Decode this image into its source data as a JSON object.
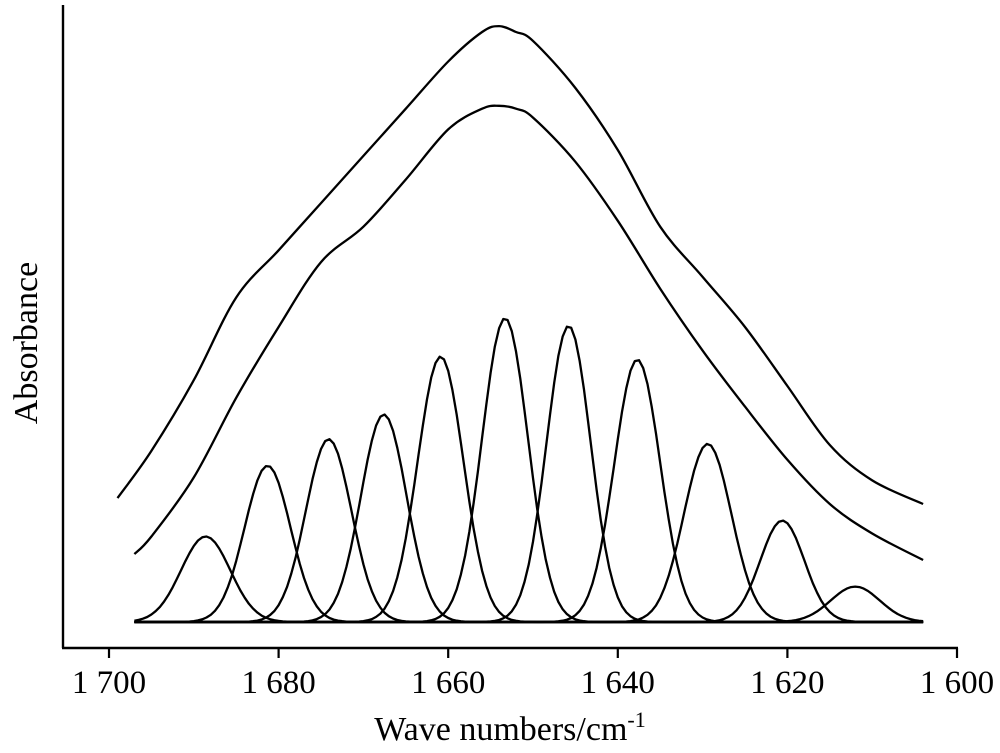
{
  "chart_data": {
    "type": "line",
    "title": "",
    "xlabel": "Wave numbers/cm",
    "xlabel_superscript": "-1",
    "ylabel": "Absorbance",
    "xlim": [
      1700,
      1600
    ],
    "x_reversed": true,
    "ylim": [
      0,
      1.05
    ],
    "y_ticks_shown": false,
    "grid": false,
    "legend": "none",
    "xticks": [
      {
        "value": 1700,
        "label": "1 700"
      },
      {
        "value": 1680,
        "label": "1 680"
      },
      {
        "value": 1660,
        "label": "1 660"
      },
      {
        "value": 1640,
        "label": "1 640"
      },
      {
        "value": 1620,
        "label": "1 620"
      },
      {
        "value": 1600,
        "label": "1 600"
      }
    ],
    "series": [
      {
        "role": "spectrum",
        "x": [
          1699,
          1695,
          1690,
          1685,
          1680,
          1675,
          1670,
          1665,
          1660,
          1656,
          1654,
          1652,
          1650,
          1645,
          1640,
          1635,
          1630,
          1625,
          1620,
          1615,
          1610,
          1604
        ],
        "values": [
          0.21,
          0.29,
          0.41,
          0.55,
          0.63,
          0.71,
          0.79,
          0.87,
          0.95,
          1.0,
          1.01,
          1.0,
          0.985,
          0.905,
          0.8,
          0.67,
          0.585,
          0.5,
          0.4,
          0.3,
          0.24,
          0.2
        ]
      },
      {
        "role": "fitted envelope",
        "x": [
          1697,
          1695,
          1690,
          1685,
          1680,
          1675,
          1670,
          1665,
          1660,
          1656,
          1654,
          1652,
          1650,
          1645,
          1640,
          1635,
          1630,
          1625,
          1620,
          1615,
          1610,
          1604
        ],
        "values": [
          0.115,
          0.145,
          0.245,
          0.38,
          0.5,
          0.61,
          0.67,
          0.75,
          0.835,
          0.87,
          0.875,
          0.87,
          0.855,
          0.78,
          0.68,
          0.565,
          0.46,
          0.365,
          0.275,
          0.2,
          0.15,
          0.105
        ]
      },
      {
        "role": "component",
        "center": 1688.6,
        "height": 0.145,
        "sigma": 2.9
      },
      {
        "role": "component",
        "center": 1681.3,
        "height": 0.265,
        "sigma": 2.7
      },
      {
        "role": "component",
        "center": 1674.1,
        "height": 0.31,
        "sigma": 2.7
      },
      {
        "role": "component",
        "center": 1667.6,
        "height": 0.352,
        "sigma": 2.7
      },
      {
        "role": "component",
        "center": 1660.9,
        "height": 0.45,
        "sigma": 2.7
      },
      {
        "role": "component",
        "center": 1653.3,
        "height": 0.515,
        "sigma": 2.7
      },
      {
        "role": "component",
        "center": 1645.8,
        "height": 0.502,
        "sigma": 2.6
      },
      {
        "role": "component",
        "center": 1637.7,
        "height": 0.445,
        "sigma": 2.7
      },
      {
        "role": "component",
        "center": 1629.4,
        "height": 0.302,
        "sigma": 2.8
      },
      {
        "role": "component",
        "center": 1620.6,
        "height": 0.172,
        "sigma": 2.6
      },
      {
        "role": "component",
        "center": 1612.0,
        "height": 0.06,
        "sigma": 2.9
      }
    ]
  }
}
